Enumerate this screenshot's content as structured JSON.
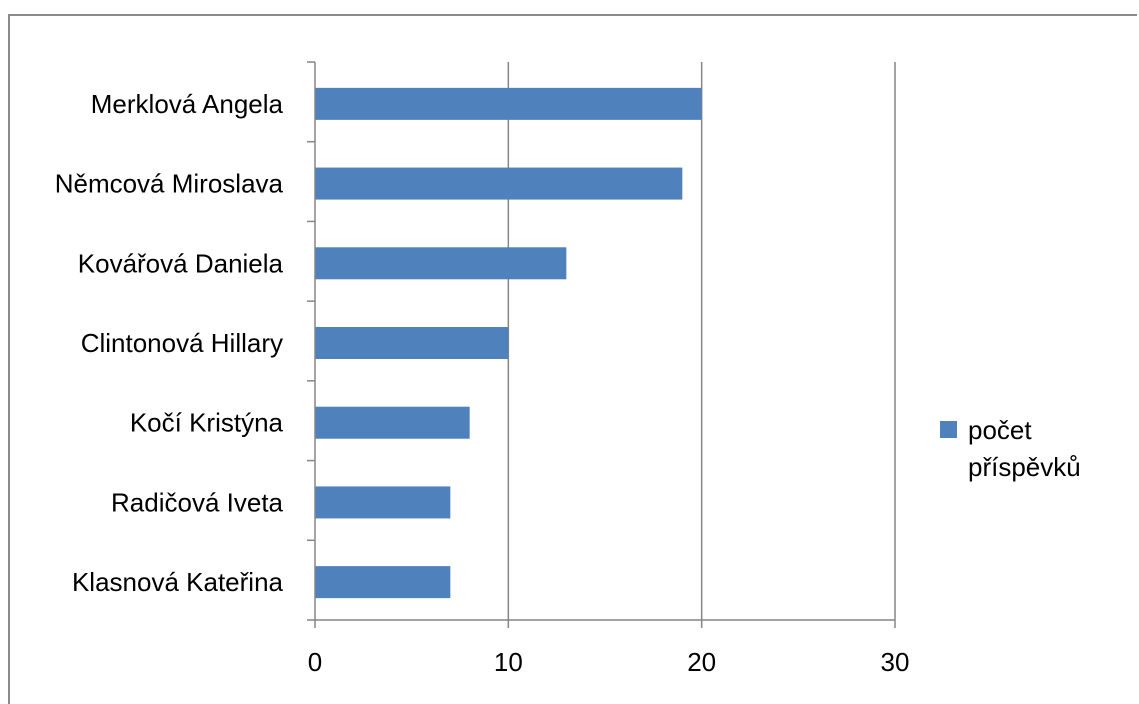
{
  "chart_data": {
    "type": "bar",
    "orientation": "horizontal",
    "categories": [
      "Merklová Angela",
      "Němcová Miroslava",
      "Kovářová Daniela",
      "Clintonová Hillary",
      "Kočí Kristýna",
      "Radičová Iveta",
      "Klasnová Kateřina"
    ],
    "series": [
      {
        "name": "počet příspěvků",
        "values": [
          20,
          19,
          13,
          10,
          8,
          7,
          7
        ]
      }
    ],
    "xlim": [
      0,
      30
    ],
    "xticks": [
      0,
      10,
      20,
      30
    ],
    "grid": true,
    "legend_position": "right",
    "colors": {
      "bar": "#4f81bd",
      "grid": "#868686",
      "axis": "#868686"
    },
    "legend_lines": [
      "počet",
      "příspěvků"
    ]
  }
}
